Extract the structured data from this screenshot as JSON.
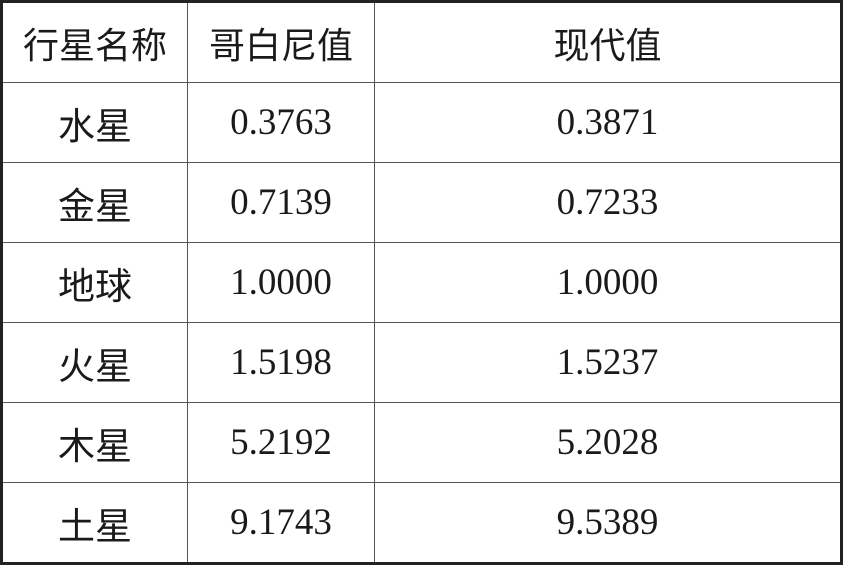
{
  "table": {
    "headers": [
      "行星名称",
      "哥白尼值",
      "现代值"
    ],
    "rows": [
      [
        "水星",
        "0.3763",
        "0.3871"
      ],
      [
        "金星",
        "0.7139",
        "0.7233"
      ],
      [
        "地球",
        "1.0000",
        "1.0000"
      ],
      [
        "火星",
        "1.5198",
        "1.5237"
      ],
      [
        "木星",
        "5.2192",
        "5.2028"
      ],
      [
        "土星",
        "9.1743",
        "9.5389"
      ]
    ]
  }
}
